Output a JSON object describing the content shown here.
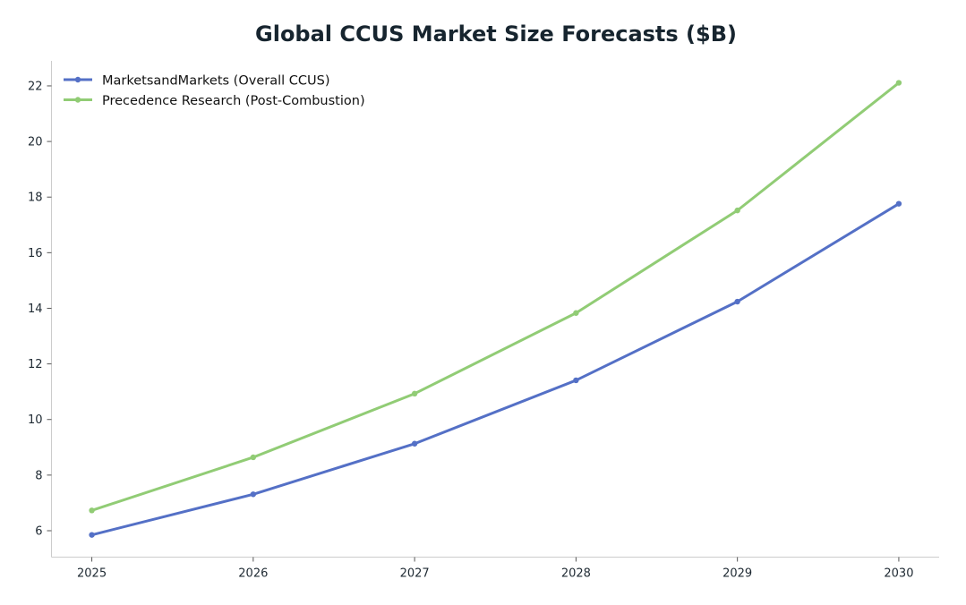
{
  "chart_data": {
    "type": "line",
    "title": "Global CCUS Market Size Forecasts ($B)",
    "xlabel": "",
    "ylabel": "",
    "x": [
      2025,
      2026,
      2027,
      2028,
      2029,
      2030
    ],
    "xlim": [
      2024.75,
      2030.25
    ],
    "ylim": [
      5.05,
      22.9
    ],
    "xticks": [
      2025,
      2026,
      2027,
      2028,
      2029,
      2030
    ],
    "yticks": [
      6,
      8,
      10,
      12,
      14,
      16,
      18,
      20,
      22
    ],
    "grid": false,
    "legend_position": "top-left",
    "series": [
      {
        "name": "MarketsandMarkets (Overall CCUS)",
        "color": "#5470c6",
        "values": [
          5.85,
          7.31,
          9.13,
          11.41,
          14.24,
          17.76
        ]
      },
      {
        "name": "Precedence Research (Post-Combustion)",
        "color": "#91cc75",
        "values": [
          6.73,
          8.64,
          10.93,
          13.83,
          17.52,
          22.11
        ]
      }
    ]
  }
}
